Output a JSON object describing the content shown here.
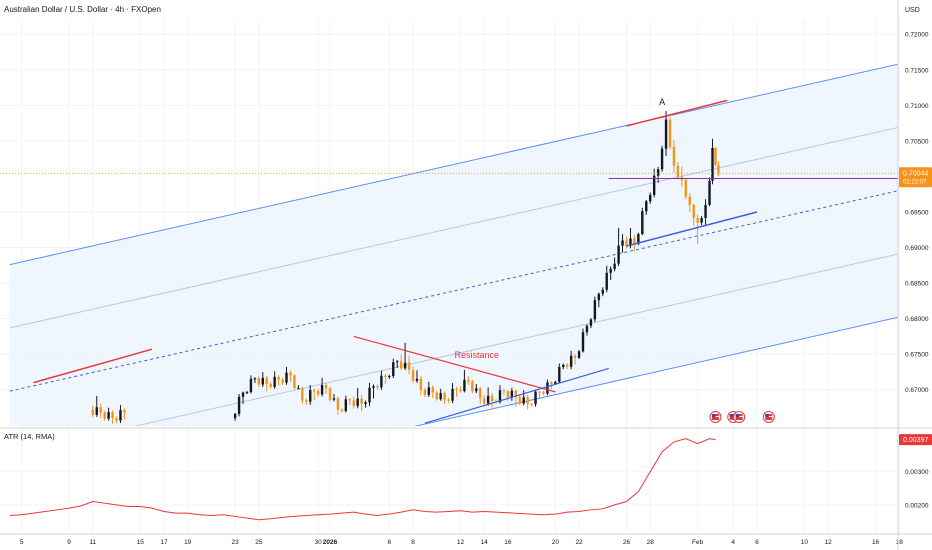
{
  "header": {
    "title": "Australian Dollar / U.S. Dollar · 4h · FXOpen",
    "currency": "USD"
  },
  "colors": {
    "up": "#131722",
    "down": "#f7931a",
    "channel_line": "#5b8ff9",
    "channel_fill": "#eaf2fd",
    "median_line": "#3b5fd9",
    "resistance": "#e83838",
    "horizontal": "#9c27b0",
    "price_line": "#f7931a",
    "atr_line": "#e83838",
    "atr_badge": "#e83838",
    "grid": "#f0f3fa",
    "axis_text": "#131722"
  },
  "price_label": {
    "value": "0.70044",
    "countdown": "02:22:07"
  },
  "annotations": {
    "peak_label": "A",
    "resistance_label": "Resistance"
  },
  "event_icons": [
    "us-flag-icon",
    "us-flag-icon",
    "us-flag-icon",
    "us-flag-icon"
  ],
  "atr_panel": {
    "title": "ATR (14, RMA)",
    "value": "0.00397",
    "ticks": [
      {
        "label": "0.00300",
        "value": 0.003
      },
      {
        "label": "0.00200",
        "value": 0.002
      }
    ]
  },
  "chart_data": [
    {
      "type": "candlestick",
      "title": "Australian Dollar / U.S. Dollar · 4h · FXOpen",
      "y_unit": "USD",
      "ylim": [
        0.6649,
        0.722
      ],
      "y_ticks": [
        {
          "label": "0.72000",
          "value": 0.72
        },
        {
          "label": "0.71500",
          "value": 0.715
        },
        {
          "label": "0.71000",
          "value": 0.71
        },
        {
          "label": "0.70500",
          "value": 0.705
        },
        {
          "label": "0.69500",
          "value": 0.695
        },
        {
          "label": "0.69000",
          "value": 0.69
        },
        {
          "label": "0.68500",
          "value": 0.685
        },
        {
          "label": "0.68000",
          "value": 0.68
        },
        {
          "label": "0.67500",
          "value": 0.675
        },
        {
          "label": "0.67000",
          "value": 0.67
        }
      ],
      "x_ticks": [
        {
          "label": "5",
          "day": -26
        },
        {
          "label": "9",
          "day": -22
        },
        {
          "label": "11",
          "day": -20
        },
        {
          "label": "15",
          "day": -16
        },
        {
          "label": "17",
          "day": -14
        },
        {
          "label": "19",
          "day": -12
        },
        {
          "label": "23",
          "day": -8
        },
        {
          "label": "25",
          "day": -6
        },
        {
          "label": "30",
          "day": -1
        },
        {
          "label": "2026",
          "day": 0
        },
        {
          "label": "6",
          "day": 5
        },
        {
          "label": "8",
          "day": 7
        },
        {
          "label": "12",
          "day": 11
        },
        {
          "label": "14",
          "day": 13
        },
        {
          "label": "16",
          "day": 15
        },
        {
          "label": "20",
          "day": 19
        },
        {
          "label": "22",
          "day": 21
        },
        {
          "label": "26",
          "day": 25
        },
        {
          "label": "28",
          "day": 27
        },
        {
          "label": "Feb",
          "day": 31
        },
        {
          "label": "4",
          "day": 34
        },
        {
          "label": "6",
          "day": 36
        },
        {
          "label": "10",
          "day": 40
        },
        {
          "label": "12",
          "day": 42
        },
        {
          "label": "16",
          "day": 46
        },
        {
          "label": "18",
          "day": 48
        }
      ],
      "candles_daily": [
        {
          "day": -20,
          "open": 0.6672,
          "high": 0.6688,
          "low": 0.666,
          "close": 0.6668
        },
        {
          "day": -19,
          "open": 0.6668,
          "high": 0.6674,
          "low": 0.6652,
          "close": 0.666
        },
        {
          "day": -18,
          "open": 0.666,
          "high": 0.6675,
          "low": 0.665,
          "close": 0.6668
        },
        {
          "day": -8,
          "open": 0.666,
          "high": 0.67,
          "low": 0.665,
          "close": 0.6696
        },
        {
          "day": -7,
          "open": 0.6696,
          "high": 0.6721,
          "low": 0.669,
          "close": 0.6716
        },
        {
          "day": -6,
          "open": 0.6716,
          "high": 0.6724,
          "low": 0.6698,
          "close": 0.6708
        },
        {
          "day": -5,
          "open": 0.6708,
          "high": 0.6722,
          "low": 0.67,
          "close": 0.6714
        },
        {
          "day": -4,
          "open": 0.6714,
          "high": 0.6728,
          "low": 0.6705,
          "close": 0.672
        },
        {
          "day": -3,
          "open": 0.672,
          "high": 0.6724,
          "low": 0.668,
          "close": 0.6685
        },
        {
          "day": -2,
          "open": 0.6685,
          "high": 0.6705,
          "low": 0.6672,
          "close": 0.6698
        },
        {
          "day": -1,
          "open": 0.6698,
          "high": 0.6712,
          "low": 0.669,
          "close": 0.6702
        },
        {
          "day": 0,
          "open": 0.6702,
          "high": 0.6708,
          "low": 0.6665,
          "close": 0.6672
        },
        {
          "day": 1,
          "open": 0.6672,
          "high": 0.669,
          "low": 0.6665,
          "close": 0.6685
        },
        {
          "day": 2,
          "open": 0.6685,
          "high": 0.67,
          "low": 0.667,
          "close": 0.668
        },
        {
          "day": 3,
          "open": 0.668,
          "high": 0.6712,
          "low": 0.6665,
          "close": 0.6705
        },
        {
          "day": 4,
          "open": 0.6705,
          "high": 0.6725,
          "low": 0.6695,
          "close": 0.6718
        },
        {
          "day": 5,
          "open": 0.6718,
          "high": 0.6745,
          "low": 0.671,
          "close": 0.674
        },
        {
          "day": 6,
          "open": 0.674,
          "high": 0.6768,
          "low": 0.6722,
          "close": 0.6728
        },
        {
          "day": 7,
          "open": 0.6728,
          "high": 0.674,
          "low": 0.6692,
          "close": 0.67
        },
        {
          "day": 8,
          "open": 0.67,
          "high": 0.6708,
          "low": 0.6688,
          "close": 0.6696
        },
        {
          "day": 9,
          "open": 0.6696,
          "high": 0.6702,
          "low": 0.668,
          "close": 0.6686
        },
        {
          "day": 10,
          "open": 0.6686,
          "high": 0.6708,
          "low": 0.6676,
          "close": 0.67
        },
        {
          "day": 11,
          "open": 0.67,
          "high": 0.6726,
          "low": 0.6695,
          "close": 0.6712
        },
        {
          "day": 12,
          "open": 0.6712,
          "high": 0.6718,
          "low": 0.668,
          "close": 0.6688
        },
        {
          "day": 13,
          "open": 0.6688,
          "high": 0.67,
          "low": 0.6675,
          "close": 0.6684
        },
        {
          "day": 14,
          "open": 0.6684,
          "high": 0.6705,
          "low": 0.6678,
          "close": 0.6698
        },
        {
          "day": 15,
          "open": 0.6698,
          "high": 0.6702,
          "low": 0.6676,
          "close": 0.669
        },
        {
          "day": 16,
          "open": 0.669,
          "high": 0.67,
          "low": 0.6672,
          "close": 0.668
        },
        {
          "day": 17,
          "open": 0.668,
          "high": 0.67,
          "low": 0.667,
          "close": 0.6697
        },
        {
          "day": 18,
          "open": 0.6697,
          "high": 0.6712,
          "low": 0.669,
          "close": 0.6708
        },
        {
          "day": 19,
          "open": 0.6708,
          "high": 0.674,
          "low": 0.6705,
          "close": 0.6735
        },
        {
          "day": 20,
          "open": 0.6735,
          "high": 0.6752,
          "low": 0.6725,
          "close": 0.6745
        },
        {
          "day": 21,
          "open": 0.6745,
          "high": 0.6795,
          "low": 0.674,
          "close": 0.679
        },
        {
          "day": 22,
          "open": 0.679,
          "high": 0.684,
          "low": 0.678,
          "close": 0.6835
        },
        {
          "day": 23,
          "open": 0.6835,
          "high": 0.688,
          "low": 0.6825,
          "close": 0.687
        },
        {
          "day": 24,
          "open": 0.687,
          "high": 0.6935,
          "low": 0.686,
          "close": 0.691
        },
        {
          "day": 25,
          "open": 0.691,
          "high": 0.6925,
          "low": 0.6895,
          "close": 0.6905
        },
        {
          "day": 26,
          "open": 0.6905,
          "high": 0.697,
          "low": 0.69,
          "close": 0.6965
        },
        {
          "day": 27,
          "open": 0.6965,
          "high": 0.702,
          "low": 0.6955,
          "close": 0.701
        },
        {
          "day": 28,
          "open": 0.701,
          "high": 0.7092,
          "low": 0.7,
          "close": 0.708
        },
        {
          "day": 28.67,
          "open": 0.708,
          "high": 0.709,
          "low": 0.7005,
          "close": 0.7015
        },
        {
          "day": 29.33,
          "open": 0.7015,
          "high": 0.703,
          "low": 0.6985,
          "close": 0.6995
        },
        {
          "day": 30,
          "open": 0.6995,
          "high": 0.7,
          "low": 0.695,
          "close": 0.696
        },
        {
          "day": 30.67,
          "open": 0.696,
          "high": 0.6965,
          "low": 0.6905,
          "close": 0.6935
        },
        {
          "day": 31.33,
          "open": 0.6935,
          "high": 0.6968,
          "low": 0.6925,
          "close": 0.696
        },
        {
          "day": 32,
          "open": 0.696,
          "high": 0.7053,
          "low": 0.6955,
          "close": 0.704
        },
        {
          "day": 32.5,
          "open": 0.704,
          "high": 0.7045,
          "low": 0.7,
          "close": 0.7004
        }
      ],
      "current_price": 0.70044,
      "drawings": {
        "channel": {
          "upper": [
            {
              "day": -27,
              "price": 0.6876
            },
            {
              "day": 49,
              "price": 0.7162
            }
          ],
          "inner_upper": [
            {
              "day": -27,
              "price": 0.6787
            },
            {
              "day": 49,
              "price": 0.7073
            }
          ],
          "median": [
            {
              "day": -27,
              "price": 0.6698
            },
            {
              "day": 49,
              "price": 0.6984
            }
          ],
          "inner_lower": [
            {
              "day": -27,
              "price": 0.6609
            },
            {
              "day": 49,
              "price": 0.6895
            }
          ],
          "lower": [
            {
              "day": -27,
              "price": 0.652
            },
            {
              "day": 49,
              "price": 0.6806
            }
          ]
        },
        "upper_channel_highlight": [
          {
            "day": 25,
            "price": 0.7071
          },
          {
            "day": 33.5,
            "price": 0.7107
          }
        ],
        "median_highlight_left": [
          {
            "day": -25,
            "price": 0.671
          },
          {
            "day": -15,
            "price": 0.6757
          }
        ],
        "median_segment": [
          {
            "day": 25,
            "price": 0.6902
          },
          {
            "day": 36,
            "price": 0.695
          }
        ],
        "horizontal_level": [
          {
            "day": 23.5,
            "price": 0.6997
          },
          {
            "day": 48.5,
            "price": 0.6997
          }
        ],
        "resistance_line": [
          {
            "day": 2,
            "price": 0.6775
          },
          {
            "day": 19,
            "price": 0.6697
          }
        ],
        "support_line": [
          {
            "day": 8,
            "price": 0.6653
          },
          {
            "day": 23.5,
            "price": 0.673
          }
        ]
      }
    },
    {
      "type": "line",
      "title": "ATR (14, RMA)",
      "ylim": [
        0.00118,
        0.00426
      ],
      "x": [
        -27,
        -26,
        -25,
        -24,
        -23,
        -22,
        -21,
        -20,
        -19,
        -18,
        -17,
        -16,
        -15,
        -14,
        -13,
        -12,
        -11,
        -10,
        -9,
        -8,
        -7,
        -6,
        -5,
        -4,
        -3,
        -2,
        -1,
        0,
        1,
        2,
        3,
        4,
        5,
        6,
        7,
        8,
        9,
        10,
        11,
        12,
        13,
        14,
        15,
        16,
        17,
        18,
        19,
        20,
        21,
        22,
        23,
        24,
        25,
        26,
        27,
        28,
        29,
        30,
        31,
        32,
        32.5
      ],
      "values": [
        0.00168,
        0.0017,
        0.00175,
        0.0018,
        0.00185,
        0.0019,
        0.00197,
        0.0021,
        0.00205,
        0.002,
        0.00195,
        0.00195,
        0.0019,
        0.0018,
        0.00175,
        0.00175,
        0.0017,
        0.00168,
        0.0017,
        0.00165,
        0.0016,
        0.00155,
        0.00158,
        0.00162,
        0.00165,
        0.00168,
        0.0017,
        0.00172,
        0.00175,
        0.00178,
        0.00172,
        0.00168,
        0.00172,
        0.00178,
        0.00185,
        0.0018,
        0.00178,
        0.0018,
        0.00182,
        0.00178,
        0.0018,
        0.00178,
        0.00176,
        0.00174,
        0.00172,
        0.0017,
        0.00172,
        0.00178,
        0.0018,
        0.00185,
        0.00188,
        0.002,
        0.0021,
        0.0024,
        0.003,
        0.0036,
        0.0039,
        0.004,
        0.00385,
        0.004,
        0.00397
      ]
    }
  ]
}
